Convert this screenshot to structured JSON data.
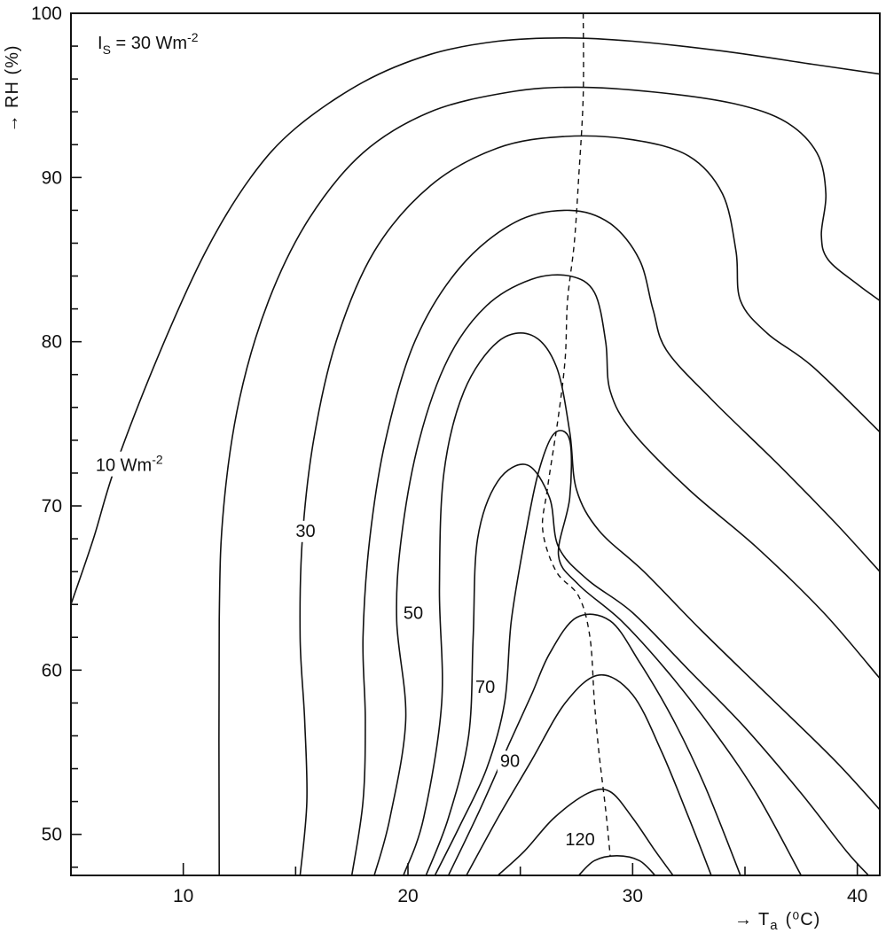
{
  "chart_data": {
    "type": "contour",
    "annotation": {
      "main": "I",
      "sub": "S",
      "value": " = 30 Wm",
      "sup": "-2"
    },
    "xlabel": {
      "arrow": "→",
      "symbol": "T",
      "sub": "a",
      "unit": "(⁰C)"
    },
    "ylabel": "→ RH (%)",
    "xlim": [
      5,
      41
    ],
    "ylim": [
      47.5,
      100
    ],
    "x_ticks": [
      10,
      20,
      30,
      40
    ],
    "y_ticks": [
      50,
      60,
      70,
      80,
      90,
      100
    ],
    "x_tick_labels": [
      "10",
      "20",
      "30",
      "40"
    ],
    "y_tick_labels": [
      "50",
      "60",
      "70",
      "80",
      "90",
      "100"
    ],
    "contour_labels": [
      {
        "text": "10 Wm",
        "sup": "-2",
        "x": 6.1,
        "y": 72.5
      },
      {
        "text": "30",
        "x": 15.0,
        "y": 68.5
      },
      {
        "text": "50",
        "x": 19.8,
        "y": 63.5
      },
      {
        "text": "70",
        "x": 23.0,
        "y": 59.0
      },
      {
        "text": "90",
        "x": 24.1,
        "y": 54.5
      },
      {
        "text": "120",
        "x": 27.0,
        "y": 49.7
      }
    ],
    "contours": [
      {
        "points": [
          [
            5.0,
            64.0
          ],
          [
            6.0,
            68.0
          ],
          [
            7.0,
            72.5
          ],
          [
            9.0,
            79.5
          ],
          [
            11.0,
            85.5
          ],
          [
            13.0,
            90.0
          ],
          [
            15.0,
            93.0
          ],
          [
            18.0,
            95.8
          ],
          [
            21.0,
            97.5
          ],
          [
            24.0,
            98.3
          ],
          [
            27.0,
            98.5
          ],
          [
            30.0,
            98.3
          ],
          [
            34.0,
            97.7
          ],
          [
            38.0,
            96.9
          ],
          [
            41.0,
            96.3
          ]
        ]
      },
      {
        "points": [
          [
            11.6,
            47.5
          ],
          [
            11.6,
            63.0
          ],
          [
            11.8,
            70.0
          ],
          [
            12.5,
            76.5
          ],
          [
            13.8,
            82.5
          ],
          [
            15.6,
            87.5
          ],
          [
            18.0,
            91.5
          ],
          [
            21.0,
            94.0
          ],
          [
            24.5,
            95.2
          ],
          [
            27.5,
            95.5
          ],
          [
            31.0,
            95.2
          ],
          [
            34.5,
            94.5
          ],
          [
            36.8,
            93.4
          ],
          [
            38.2,
            91.5
          ],
          [
            38.6,
            89.0
          ],
          [
            38.4,
            86.5
          ],
          [
            38.7,
            85.0
          ],
          [
            40.0,
            83.5
          ],
          [
            41.0,
            82.5
          ]
        ]
      },
      {
        "points": [
          [
            15.2,
            47.5
          ],
          [
            15.5,
            52.0
          ],
          [
            15.4,
            57.0
          ],
          [
            15.2,
            62.0
          ],
          [
            15.3,
            68.0
          ],
          [
            15.8,
            74.0
          ],
          [
            16.8,
            80.0
          ],
          [
            18.5,
            85.5
          ],
          [
            21.0,
            89.5
          ],
          [
            24.0,
            91.8
          ],
          [
            27.0,
            92.5
          ],
          [
            30.0,
            92.3
          ],
          [
            32.5,
            91.3
          ],
          [
            34.0,
            89.0
          ],
          [
            34.6,
            85.5
          ],
          [
            34.8,
            82.5
          ],
          [
            36.0,
            80.5
          ],
          [
            38.0,
            78.5
          ],
          [
            41.0,
            74.5
          ]
        ]
      },
      {
        "points": [
          [
            17.5,
            47.5
          ],
          [
            18.0,
            52.0
          ],
          [
            18.1,
            57.0
          ],
          [
            18.0,
            62.0
          ],
          [
            18.3,
            68.0
          ],
          [
            19.0,
            74.0
          ],
          [
            20.3,
            80.0
          ],
          [
            22.3,
            84.5
          ],
          [
            24.8,
            87.3
          ],
          [
            27.2,
            88.0
          ],
          [
            29.0,
            87.2
          ],
          [
            30.3,
            85.0
          ],
          [
            30.9,
            82.0
          ],
          [
            31.5,
            79.5
          ],
          [
            33.5,
            76.5
          ],
          [
            36.5,
            72.5
          ],
          [
            39.0,
            69.0
          ],
          [
            41.0,
            66.0
          ]
        ]
      },
      {
        "points": [
          [
            18.5,
            47.5
          ],
          [
            19.2,
            51.0
          ],
          [
            19.9,
            57.0
          ],
          [
            19.5,
            63.0
          ],
          [
            19.7,
            68.0
          ],
          [
            20.5,
            74.0
          ],
          [
            21.8,
            79.0
          ],
          [
            23.5,
            82.2
          ],
          [
            25.5,
            83.8
          ],
          [
            27.2,
            84.0
          ],
          [
            28.3,
            83.0
          ],
          [
            28.8,
            80.0
          ],
          [
            29.0,
            77.0
          ],
          [
            30.0,
            74.5
          ],
          [
            32.5,
            71.0
          ],
          [
            35.5,
            67.5
          ],
          [
            38.5,
            63.5
          ],
          [
            41.0,
            59.5
          ]
        ]
      },
      {
        "points": [
          [
            19.8,
            47.5
          ],
          [
            20.7,
            51.0
          ],
          [
            21.5,
            58.0
          ],
          [
            21.4,
            65.0
          ],
          [
            21.6,
            72.0
          ],
          [
            22.5,
            77.0
          ],
          [
            24.0,
            80.0
          ],
          [
            25.5,
            80.4
          ],
          [
            26.6,
            78.5
          ],
          [
            27.2,
            74.5
          ],
          [
            27.5,
            71.0
          ],
          [
            28.5,
            68.5
          ],
          [
            30.5,
            66.0
          ],
          [
            33.0,
            62.5
          ],
          [
            36.0,
            58.5
          ],
          [
            39.0,
            54.5
          ],
          [
            41.0,
            51.5
          ]
        ]
      },
      {
        "points": [
          [
            20.8,
            47.5
          ],
          [
            21.8,
            51.0
          ],
          [
            22.7,
            56.0
          ],
          [
            22.9,
            62.0
          ],
          [
            23.1,
            68.0
          ],
          [
            24.0,
            71.5
          ],
          [
            25.3,
            72.5
          ],
          [
            26.3,
            70.5
          ],
          [
            26.7,
            67.5
          ],
          [
            28.0,
            65.5
          ],
          [
            30.0,
            63.5
          ],
          [
            32.5,
            60.0
          ],
          [
            35.0,
            56.5
          ],
          [
            37.5,
            52.5
          ],
          [
            39.5,
            49.0
          ],
          [
            40.5,
            47.5
          ]
        ]
      },
      {
        "points": [
          [
            21.2,
            47.5
          ],
          [
            22.3,
            50.5
          ],
          [
            23.5,
            54.0
          ],
          [
            24.3,
            58.0
          ],
          [
            24.6,
            63.0
          ],
          [
            25.2,
            68.0
          ],
          [
            25.8,
            72.0
          ],
          [
            26.5,
            74.4
          ],
          [
            27.2,
            74.0
          ],
          [
            27.2,
            70.5
          ],
          [
            26.7,
            67.0
          ],
          [
            27.6,
            65.2
          ],
          [
            29.5,
            63.0
          ],
          [
            31.5,
            60.0
          ],
          [
            33.5,
            56.5
          ],
          [
            35.5,
            52.5
          ],
          [
            37.5,
            47.5
          ]
        ]
      },
      {
        "points": [
          [
            21.8,
            47.5
          ],
          [
            23.2,
            51.5
          ],
          [
            24.5,
            55.5
          ],
          [
            25.5,
            58.5
          ],
          [
            26.3,
            61.0
          ],
          [
            27.5,
            63.2
          ],
          [
            29.0,
            63.0
          ],
          [
            30.3,
            60.5
          ],
          [
            31.8,
            57.0
          ],
          [
            33.2,
            53.0
          ],
          [
            34.8,
            47.5
          ]
        ]
      },
      {
        "points": [
          [
            22.6,
            47.5
          ],
          [
            24.0,
            51.0
          ],
          [
            25.5,
            54.5
          ],
          [
            27.0,
            58.0
          ],
          [
            28.5,
            59.7
          ],
          [
            30.0,
            58.5
          ],
          [
            31.3,
            55.0
          ],
          [
            32.5,
            51.0
          ],
          [
            33.5,
            47.5
          ]
        ]
      },
      {
        "points": [
          [
            24.0,
            47.5
          ],
          [
            25.2,
            49.0
          ],
          [
            26.5,
            51.0
          ],
          [
            28.0,
            52.5
          ],
          [
            29.0,
            52.6
          ],
          [
            30.0,
            51.0
          ],
          [
            31.0,
            49.0
          ],
          [
            31.8,
            47.5
          ]
        ]
      },
      {
        "points": [
          [
            27.6,
            47.5
          ],
          [
            28.3,
            48.4
          ],
          [
            29.3,
            48.7
          ],
          [
            30.3,
            48.4
          ],
          [
            31.0,
            47.5
          ]
        ]
      }
    ],
    "ridge_line": [
      [
        27.8,
        100.0
      ],
      [
        27.8,
        95.0
      ],
      [
        27.6,
        90.0
      ],
      [
        27.4,
        86.0
      ],
      [
        27.1,
        82.5
      ],
      [
        27.0,
        79.0
      ],
      [
        26.7,
        75.5
      ],
      [
        26.2,
        71.0
      ],
      [
        26.0,
        68.5
      ],
      [
        26.6,
        66.0
      ],
      [
        27.6,
        64.5
      ],
      [
        28.1,
        62.0
      ],
      [
        28.3,
        58.0
      ],
      [
        28.5,
        55.0
      ],
      [
        28.8,
        51.5
      ],
      [
        29.0,
        48.7
      ]
    ]
  }
}
